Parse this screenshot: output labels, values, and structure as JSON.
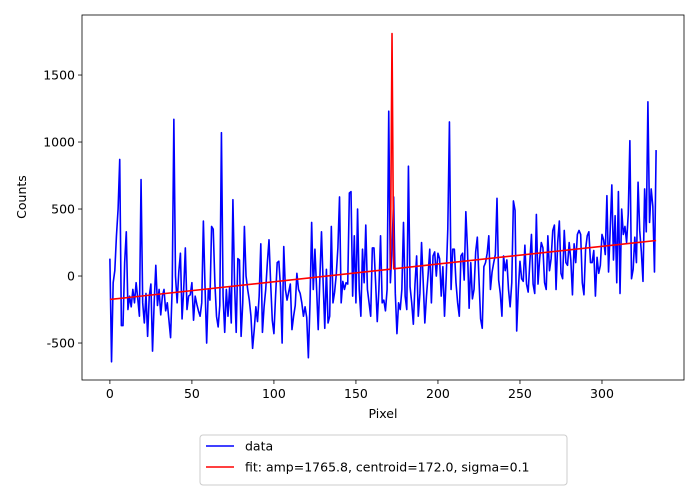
{
  "chart_data": {
    "type": "line",
    "xlabel": "Pixel",
    "ylabel": "Counts",
    "xlim": [
      -17,
      350
    ],
    "ylim": [
      -776,
      1948
    ],
    "xticks": [
      0,
      50,
      100,
      150,
      200,
      250,
      300
    ],
    "yticks": [
      -500,
      0,
      500,
      1000,
      1500
    ],
    "legend": "below",
    "series": [
      {
        "name": "data",
        "color": "#0000ff",
        "x": [
          0,
          1,
          2,
          3,
          4,
          5,
          6,
          7,
          8,
          9,
          10,
          11,
          12,
          13,
          14,
          15,
          16,
          17,
          18,
          19,
          20,
          21,
          22,
          23,
          24,
          25,
          26,
          27,
          28,
          29,
          30,
          31,
          32,
          33,
          34,
          35,
          36,
          37,
          38,
          39,
          40,
          41,
          42,
          43,
          44,
          45,
          46,
          47,
          48,
          49,
          50,
          51,
          52,
          53,
          54,
          55,
          56,
          57,
          58,
          59,
          60,
          61,
          62,
          63,
          64,
          65,
          66,
          67,
          68,
          69,
          70,
          71,
          72,
          73,
          74,
          75,
          76,
          77,
          78,
          79,
          80,
          81,
          82,
          83,
          84,
          85,
          86,
          87,
          88,
          89,
          90,
          91,
          92,
          93,
          94,
          95,
          96,
          97,
          98,
          99,
          100,
          101,
          102,
          103,
          104,
          105,
          106,
          107,
          108,
          109,
          110,
          111,
          112,
          113,
          114,
          115,
          116,
          117,
          118,
          119,
          120,
          121,
          122,
          123,
          124,
          125,
          126,
          127,
          128,
          129,
          130,
          131,
          132,
          133,
          134,
          135,
          136,
          137,
          138,
          139,
          140,
          141,
          142,
          143,
          144,
          145,
          146,
          147,
          148,
          149,
          150,
          151,
          152,
          153,
          154,
          155,
          156,
          157,
          158,
          159,
          160,
          161,
          162,
          163,
          164,
          165,
          166,
          167,
          168,
          169,
          170,
          171,
          172,
          173,
          174,
          175,
          176,
          177,
          178,
          179,
          180,
          181,
          182,
          183,
          184,
          185,
          186,
          187,
          188,
          189,
          190,
          191,
          192,
          193,
          194,
          195,
          196,
          197,
          198,
          199,
          200,
          201,
          202,
          203,
          204,
          205,
          206,
          207,
          208,
          209,
          210,
          211,
          212,
          213,
          214,
          215,
          216,
          217,
          218,
          219,
          220,
          221,
          222,
          223,
          224,
          225,
          226,
          227,
          228,
          229,
          230,
          231,
          232,
          233,
          234,
          235,
          236,
          237,
          238,
          239,
          240,
          241,
          242,
          243,
          244,
          245,
          246,
          247,
          248,
          249,
          250,
          251,
          252,
          253,
          254,
          255,
          256,
          257,
          258,
          259,
          260,
          261,
          262,
          263,
          264,
          265,
          266,
          267,
          268,
          269,
          270,
          271,
          272,
          273,
          274,
          275,
          276,
          277,
          278,
          279,
          280,
          281,
          282,
          283,
          284,
          285,
          286,
          287,
          288,
          289,
          290,
          291,
          292,
          293,
          294,
          295,
          296,
          297,
          298,
          299,
          300,
          301,
          302,
          303,
          304,
          305,
          306,
          307,
          308,
          309,
          310,
          311,
          312,
          313,
          314,
          315,
          316,
          317,
          318,
          319,
          320,
          321,
          322,
          323,
          324,
          325,
          326,
          327,
          328,
          329,
          330,
          331,
          332,
          333
        ],
        "values": [
          130,
          -640,
          -50,
          40,
          300,
          500,
          870,
          -370,
          -370,
          100,
          330,
          -250,
          -150,
          -230,
          -100,
          -200,
          -50,
          -170,
          -300,
          720,
          -200,
          -350,
          -130,
          -450,
          -150,
          -60,
          -560,
          -200,
          80,
          -220,
          -100,
          -290,
          -150,
          -100,
          -260,
          -200,
          -330,
          -460,
          -80,
          1170,
          0,
          -200,
          30,
          170,
          -320,
          -100,
          210,
          -250,
          -150,
          -140,
          -50,
          -330,
          -150,
          -210,
          -260,
          -300,
          -200,
          410,
          -80,
          -500,
          -100,
          -180,
          370,
          350,
          -50,
          -300,
          -380,
          -220,
          1070,
          -150,
          -420,
          -100,
          -300,
          -80,
          -350,
          570,
          -60,
          -420,
          130,
          120,
          -450,
          -200,
          370,
          0,
          -100,
          -180,
          -300,
          -540,
          -400,
          -230,
          -340,
          -150,
          240,
          -420,
          -230,
          -100,
          100,
          270,
          -50,
          -330,
          -430,
          -150,
          100,
          110,
          -80,
          -500,
          220,
          -100,
          -180,
          -120,
          -60,
          -400,
          -300,
          -220,
          20,
          -100,
          -130,
          -200,
          -300,
          -230,
          -310,
          -610,
          -200,
          400,
          -100,
          200,
          -90,
          -400,
          -20,
          330,
          -50,
          -390,
          50,
          -350,
          -300,
          370,
          -200,
          -120,
          10,
          210,
          590,
          -200,
          -40,
          -100,
          -50,
          -60,
          620,
          630,
          -150,
          300,
          -200,
          500,
          -100,
          -300,
          200,
          -50,
          380,
          -100,
          -200,
          -300,
          210,
          210,
          -50,
          -340,
          -100,
          300,
          -200,
          -180,
          -260,
          -100,
          1230,
          -50,
          200,
          590,
          -130,
          -430,
          -200,
          -250,
          -100,
          400,
          -150,
          -250,
          820,
          -80,
          -200,
          -360,
          -60,
          150,
          -300,
          -130,
          250,
          -40,
          -350,
          -150,
          10,
          200,
          -200,
          150,
          180,
          0,
          170,
          130,
          -150,
          70,
          -300,
          -20,
          350,
          1150,
          -100,
          200,
          200,
          -50,
          -200,
          -300,
          150,
          170,
          -30,
          480,
          200,
          -240,
          100,
          -170,
          -100,
          180,
          290,
          -20,
          -320,
          -390,
          70,
          100,
          170,
          300,
          -100,
          30,
          100,
          160,
          580,
          -30,
          -130,
          -300,
          150,
          40,
          120,
          -100,
          -230,
          -50,
          560,
          490,
          -410,
          -100,
          110,
          -20,
          -40,
          230,
          -60,
          -120,
          100,
          310,
          -60,
          -130,
          460,
          -60,
          130,
          250,
          210,
          -50,
          -100,
          300,
          40,
          130,
          340,
          380,
          -100,
          250,
          410,
          20,
          -20,
          340,
          100,
          80,
          250,
          120,
          -140,
          240,
          100,
          310,
          340,
          310,
          -50,
          -140,
          200,
          300,
          330,
          100,
          100,
          190,
          -150,
          140,
          20,
          80,
          310,
          270,
          160,
          600,
          30,
          340,
          680,
          120,
          450,
          -50,
          630,
          -130,
          500,
          310,
          370,
          250,
          460,
          1010,
          -20,
          50,
          290,
          100,
          700,
          340,
          180,
          -40,
          650,
          330,
          1300,
          400,
          650,
          520,
          30,
          940
        ]
      },
      {
        "name": "fit: amp=1765.8, centroid=172.0, sigma=0.1",
        "color": "#ff0000",
        "x": [
          0,
          171,
          172,
          173,
          333
        ],
        "values": [
          -175,
          51,
          1810,
          54,
          265
        ]
      }
    ]
  }
}
